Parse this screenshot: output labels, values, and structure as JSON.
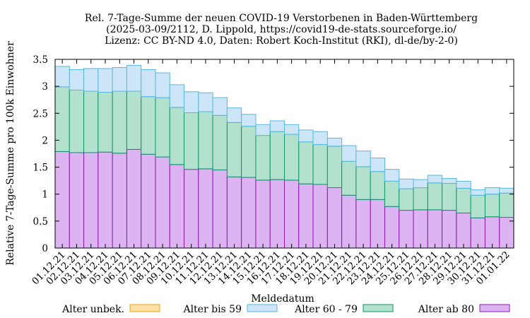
{
  "chart_data": {
    "type": "bar",
    "stacked": true,
    "title_lines": [
      "Rel. 7-Tage-Summe der neuen COVID-19 Verstorbenen in Baden-Württemberg",
      "(2025-03-09/2112, D. Lippold, https://covid19-de-stats.sourceforge.io/",
      "Lizenz: CC BY-ND 4.0, Daten: Robert Koch-Institut (RKI), dl-de/by-2-0)"
    ],
    "xlabel": "Meldedatum",
    "ylabel": "Relative 7-Tage-Summe pro 100k Einwohner",
    "ylim": [
      0,
      3.5
    ],
    "yticks": [
      "0",
      "0.5",
      "1",
      "1.5",
      "2",
      "2.5",
      "3",
      "3.5"
    ],
    "categories": [
      "01.12.21",
      "02.12.21",
      "03.12.21",
      "04.12.21",
      "05.12.21",
      "06.12.21",
      "07.12.21",
      "08.12.21",
      "09.12.21",
      "10.12.21",
      "11.12.21",
      "12.12.21",
      "13.12.21",
      "14.12.21",
      "15.12.21",
      "16.12.21",
      "17.12.21",
      "18.12.21",
      "19.12.21",
      "20.12.21",
      "21.12.21",
      "22.12.21",
      "23.12.21",
      "24.12.21",
      "25.12.21",
      "26.12.21",
      "27.12.21",
      "28.12.21",
      "29.12.21",
      "30.12.21",
      "31.12.21",
      "01.01.22"
    ],
    "series": [
      {
        "name": "Alter ab 80",
        "fill": "#ddb4f2",
        "stroke": "#8e16b4",
        "values": [
          1.79,
          1.77,
          1.77,
          1.78,
          1.76,
          1.83,
          1.74,
          1.69,
          1.55,
          1.46,
          1.47,
          1.45,
          1.32,
          1.31,
          1.26,
          1.27,
          1.26,
          1.19,
          1.18,
          1.12,
          0.98,
          0.9,
          0.9,
          0.77,
          0.7,
          0.71,
          0.71,
          0.7,
          0.65,
          0.56,
          0.58,
          0.57
        ]
      },
      {
        "name": "Alter 60 - 79",
        "fill": "#b2e2cd",
        "stroke": "#10956a",
        "values": [
          1.2,
          1.16,
          1.14,
          1.11,
          1.15,
          1.08,
          1.07,
          1.1,
          1.06,
          1.05,
          1.06,
          1.01,
          1.01,
          0.95,
          0.83,
          0.89,
          0.85,
          0.78,
          0.74,
          0.77,
          0.63,
          0.61,
          0.52,
          0.47,
          0.4,
          0.41,
          0.5,
          0.5,
          0.46,
          0.42,
          0.42,
          0.45
        ]
      },
      {
        "name": "Alter bis 59",
        "fill": "#cce6f7",
        "stroke": "#58b7e0",
        "values": [
          0.38,
          0.38,
          0.42,
          0.44,
          0.44,
          0.48,
          0.5,
          0.46,
          0.42,
          0.39,
          0.35,
          0.33,
          0.27,
          0.22,
          0.2,
          0.2,
          0.18,
          0.22,
          0.24,
          0.15,
          0.29,
          0.29,
          0.25,
          0.22,
          0.18,
          0.15,
          0.14,
          0.09,
          0.13,
          0.1,
          0.12,
          0.09
        ]
      },
      {
        "name": "Alter unbek.",
        "fill": "#fde0a6",
        "stroke": "#e8a510",
        "values": [
          0,
          0,
          0,
          0,
          0,
          0,
          0,
          0,
          0,
          0,
          0,
          0,
          0,
          0,
          0,
          0,
          0,
          0,
          0,
          0,
          0,
          0,
          0,
          0,
          0,
          0,
          0,
          0,
          0,
          0,
          0,
          0
        ]
      }
    ],
    "legend": {
      "placement": "bottom",
      "order": [
        "Alter unbek.",
        "Alter bis 59",
        "Alter 60 - 79",
        "Alter ab 80"
      ]
    }
  }
}
